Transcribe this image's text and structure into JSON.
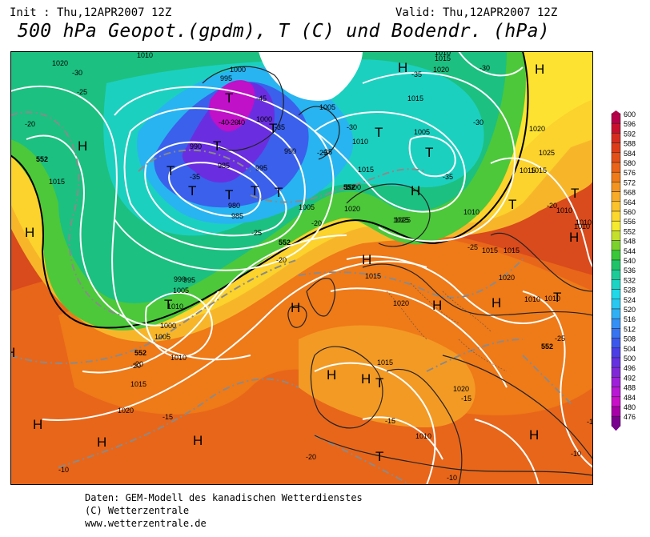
{
  "header": {
    "init": "Init : Thu,12APR2007 12Z",
    "valid": "Valid: Thu,12APR2007 12Z",
    "title": "500 hPa Geopot.(gpdm), T (C) und Bodendr. (hPa)"
  },
  "footer": {
    "line1": "Daten: GEM-Modell des kanadischen Wetterdienstes",
    "line2": "(C) Wetterzentrale",
    "line3": "www.wetterzentrale.de"
  },
  "legend": {
    "values": [
      "600",
      "596",
      "592",
      "588",
      "584",
      "580",
      "576",
      "572",
      "568",
      "564",
      "560",
      "556",
      "552",
      "548",
      "544",
      "540",
      "536",
      "532",
      "528",
      "524",
      "520",
      "516",
      "512",
      "508",
      "504",
      "500",
      "496",
      "492",
      "488",
      "484",
      "480",
      "476"
    ],
    "colors": [
      "#b8004a",
      "#c8102e",
      "#d42d20",
      "#dc3d18",
      "#e25018",
      "#e96418",
      "#ef7a18",
      "#f39420",
      "#f7ab28",
      "#fbc22c",
      "#fdd82c",
      "#f5ea30",
      "#c4e02c",
      "#7cd22c",
      "#38c838",
      "#20c468",
      "#1ccc98",
      "#1cd4c4",
      "#20d8e8",
      "#28c8f0",
      "#30b0f4",
      "#3490f4",
      "#3874f0",
      "#3c58ec",
      "#4a3ee4",
      "#6430e0",
      "#8028d8",
      "#9e20d8",
      "#b818d4",
      "#c810c8",
      "#a800a8",
      "#7a0090"
    ]
  },
  "map_labels": {
    "highs": [
      "H",
      "H",
      "H",
      "H",
      "H",
      "H",
      "H",
      "H",
      "H",
      "H",
      "H",
      "H",
      "H",
      "H",
      "H",
      "H",
      "H"
    ],
    "lows": [
      "T",
      "T",
      "T",
      "T",
      "T",
      "T",
      "T",
      "T",
      "T",
      "T",
      "T",
      "T",
      "T",
      "T",
      "T",
      "T"
    ],
    "pressure": [
      "1020",
      "1010",
      "1015",
      "1010",
      "1020",
      "1015",
      "1005",
      "1000",
      "995",
      "990",
      "985",
      "980",
      "985",
      "990",
      "995",
      "1000",
      "1005",
      "1010",
      "1015",
      "1020",
      "1025",
      "1015",
      "1010",
      "1005",
      "1010",
      "1015",
      "1020",
      "1025",
      "1010",
      "1015",
      "1020",
      "1010",
      "1015",
      "1005",
      "1000",
      "995",
      "990",
      "1000",
      "1005",
      "1010",
      "1015",
      "1020",
      "1025",
      "1015",
      "1020",
      "1010",
      "1015",
      "1020",
      "1010",
      "1015",
      "1010",
      "1010"
    ],
    "temperature": [
      "-30",
      "-25",
      "-20",
      "-20",
      "-35",
      "-40",
      "-45",
      "-40",
      "-35",
      "-30",
      "-35",
      "-30",
      "-25",
      "-35",
      "-30",
      "-35",
      "-25",
      "-20",
      "-20",
      "-15",
      "-20",
      "-15",
      "-20",
      "-15",
      "-10",
      "-10",
      "-25",
      "-10",
      "-20",
      "-25",
      "-15",
      "-20"
    ],
    "height_552": [
      "552",
      "552",
      "552",
      "552",
      "552"
    ]
  }
}
